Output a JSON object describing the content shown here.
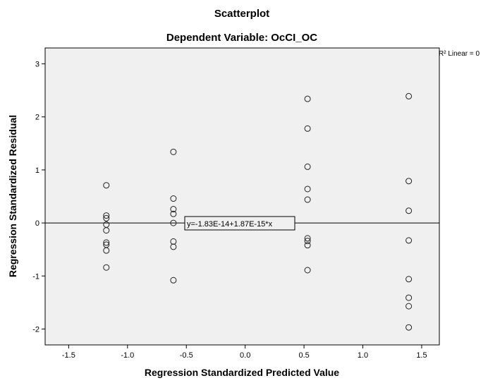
{
  "chart_data": {
    "type": "scatter",
    "title": "Scatterplot",
    "subtitle": "Dependent Variable: OcCI_OC",
    "xlabel": "Regression Standardized Predicted Value",
    "ylabel": "Regression Standardized Residual",
    "xlim": [
      -1.7,
      1.65
    ],
    "ylim": [
      -2.3,
      3.3
    ],
    "xticks": [
      -1.5,
      -1.0,
      -0.5,
      0.0,
      0.5,
      1.0,
      1.5
    ],
    "xtick_labels": [
      "-1.5",
      "-1.0",
      "-0.5",
      "0.0",
      "0.5",
      "1.0",
      "1.5"
    ],
    "yticks": [
      -2,
      -1,
      0,
      1,
      2,
      3
    ],
    "ytick_labels": [
      "-2",
      "-1",
      "0",
      "1",
      "2",
      "3"
    ],
    "grid": false,
    "background": "#f0f0f0",
    "marker": "open-circle",
    "points": [
      {
        "x": -1.18,
        "y": 0.71
      },
      {
        "x": -1.18,
        "y": 0.14
      },
      {
        "x": -1.18,
        "y": 0.09
      },
      {
        "x": -1.18,
        "y": -0.03
      },
      {
        "x": -1.18,
        "y": -0.14
      },
      {
        "x": -1.18,
        "y": -0.37
      },
      {
        "x": -1.18,
        "y": -0.41
      },
      {
        "x": -1.18,
        "y": -0.52
      },
      {
        "x": -1.18,
        "y": -0.84
      },
      {
        "x": -0.61,
        "y": 1.34
      },
      {
        "x": -0.61,
        "y": 0.46
      },
      {
        "x": -0.61,
        "y": 0.26
      },
      {
        "x": -0.61,
        "y": 0.17
      },
      {
        "x": -0.61,
        "y": 0.0
      },
      {
        "x": -0.61,
        "y": -0.35
      },
      {
        "x": -0.61,
        "y": -0.45
      },
      {
        "x": -0.61,
        "y": -1.08
      },
      {
        "x": 0.53,
        "y": 2.34
      },
      {
        "x": 0.53,
        "y": 1.78
      },
      {
        "x": 0.53,
        "y": 1.06
      },
      {
        "x": 0.53,
        "y": 0.64
      },
      {
        "x": 0.53,
        "y": 0.44
      },
      {
        "x": 0.53,
        "y": -0.29
      },
      {
        "x": 0.53,
        "y": -0.34
      },
      {
        "x": 0.53,
        "y": -0.42
      },
      {
        "x": 0.53,
        "y": -0.89
      },
      {
        "x": 1.39,
        "y": 2.39
      },
      {
        "x": 1.39,
        "y": 0.79
      },
      {
        "x": 1.39,
        "y": 0.23
      },
      {
        "x": 1.39,
        "y": -0.33
      },
      {
        "x": 1.39,
        "y": -1.06
      },
      {
        "x": 1.39,
        "y": -1.41
      },
      {
        "x": 1.39,
        "y": -1.57
      },
      {
        "x": 1.39,
        "y": -1.97
      }
    ],
    "fit_line": {
      "intercept": -1.83e-14,
      "slope": 1.87e-15,
      "label": "y=-1.83E-14+1.87E-15*x"
    },
    "legend": "R² Linear = 0"
  }
}
